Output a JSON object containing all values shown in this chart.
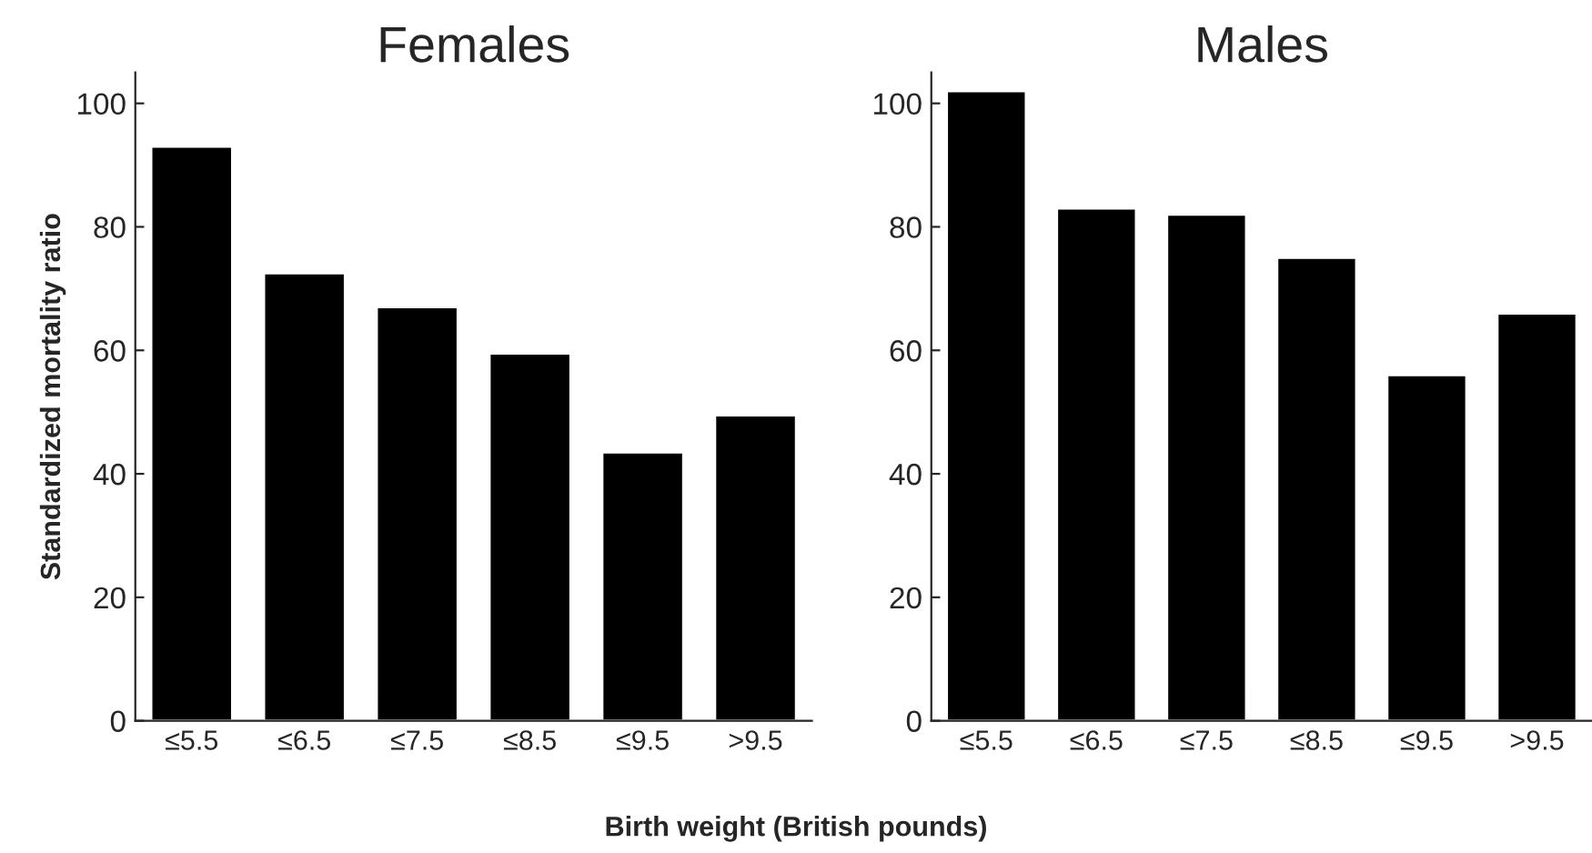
{
  "chart_data": [
    {
      "type": "bar",
      "title": "Females",
      "ylabel": "Standardized mortality ratio",
      "xlabel": "Birth weight (British pounds)",
      "categories": [
        "≤5.5",
        "≤6.5",
        "≤7.5",
        "≤8.5",
        "≤9.5",
        ">9.5"
      ],
      "values": [
        93,
        72.5,
        67,
        59.5,
        43.5,
        49.5
      ],
      "color": "#000000",
      "ylim": [
        0,
        105
      ],
      "yticks": [
        0,
        20,
        40,
        60,
        80,
        100
      ],
      "grid": false
    },
    {
      "type": "bar",
      "title": "Males",
      "categories": [
        "≤5.5",
        "≤6.5",
        "≤7.5",
        "≤8.5",
        "≤9.5",
        ">9.5"
      ],
      "values": [
        102,
        83,
        82,
        75,
        56,
        66
      ],
      "color": "#000000",
      "ylim": [
        0,
        105
      ],
      "yticks": [
        0,
        20,
        40,
        60,
        80,
        100
      ],
      "grid": false
    }
  ]
}
